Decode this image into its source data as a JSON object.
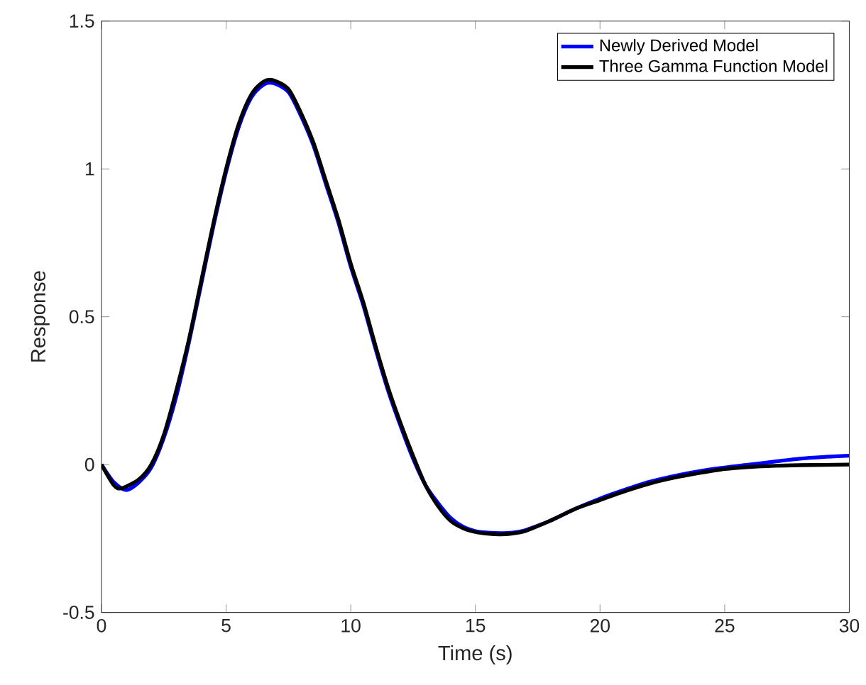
{
  "chart_data": {
    "type": "line",
    "xlabel": "Time (s)",
    "ylabel": "Response",
    "xlim": [
      0,
      30
    ],
    "ylim": [
      -0.5,
      1.5
    ],
    "xticks": [
      0,
      5,
      10,
      15,
      20,
      25,
      30
    ],
    "yticks": [
      -0.5,
      0,
      0.5,
      1,
      1.5
    ],
    "grid": false,
    "legend": "top right",
    "marker": "none",
    "line_style": "solid",
    "series": [
      {
        "name": "Newly Derived Model",
        "color": "#0000ff",
        "x": [
          0,
          0.5,
          1,
          1.5,
          2,
          2.5,
          3,
          3.5,
          4,
          4.5,
          5,
          5.5,
          6,
          6.5,
          6.9,
          7.5,
          8,
          8.5,
          9,
          9.5,
          10,
          10.5,
          11,
          11.5,
          12,
          12.5,
          13,
          13.5,
          14,
          14.5,
          15,
          15.5,
          16,
          16.5,
          17,
          18,
          19,
          20,
          21,
          22,
          23,
          24,
          25,
          26,
          27,
          28,
          29,
          30
        ],
        "values": [
          0,
          -0.06,
          -0.086,
          -0.06,
          -0.01,
          0.09,
          0.23,
          0.41,
          0.61,
          0.81,
          0.99,
          1.14,
          1.24,
          1.285,
          1.29,
          1.26,
          1.18,
          1.08,
          0.95,
          0.82,
          0.67,
          0.54,
          0.39,
          0.25,
          0.13,
          0.02,
          -0.07,
          -0.13,
          -0.18,
          -0.21,
          -0.225,
          -0.23,
          -0.232,
          -0.23,
          -0.222,
          -0.19,
          -0.15,
          -0.115,
          -0.085,
          -0.058,
          -0.038,
          -0.022,
          -0.01,
          0,
          0.01,
          0.02,
          0.026,
          0.03
        ]
      },
      {
        "name": "Three Gamma Function Model",
        "color": "#000000",
        "x": [
          0,
          0.5,
          0.8,
          1.5,
          2,
          2.5,
          3,
          3.5,
          4,
          4.5,
          5,
          5.5,
          6,
          6.5,
          6.9,
          7.5,
          8,
          8.5,
          9,
          9.5,
          10,
          10.5,
          11,
          11.5,
          12,
          12.5,
          13,
          13.5,
          14,
          14.5,
          15,
          15.5,
          16,
          16.5,
          17,
          18,
          19,
          20,
          21,
          22,
          23,
          24,
          25,
          26,
          27,
          28,
          29,
          30
        ],
        "values": [
          0,
          -0.07,
          -0.08,
          -0.05,
          0,
          0.1,
          0.25,
          0.42,
          0.62,
          0.82,
          1.0,
          1.15,
          1.25,
          1.295,
          1.3,
          1.27,
          1.19,
          1.09,
          0.96,
          0.83,
          0.68,
          0.55,
          0.4,
          0.26,
          0.14,
          0.03,
          -0.07,
          -0.14,
          -0.19,
          -0.215,
          -0.228,
          -0.234,
          -0.236,
          -0.233,
          -0.225,
          -0.19,
          -0.15,
          -0.12,
          -0.09,
          -0.064,
          -0.044,
          -0.028,
          -0.015,
          -0.008,
          -0.004,
          -0.002,
          -0.001,
          0
        ]
      }
    ]
  }
}
